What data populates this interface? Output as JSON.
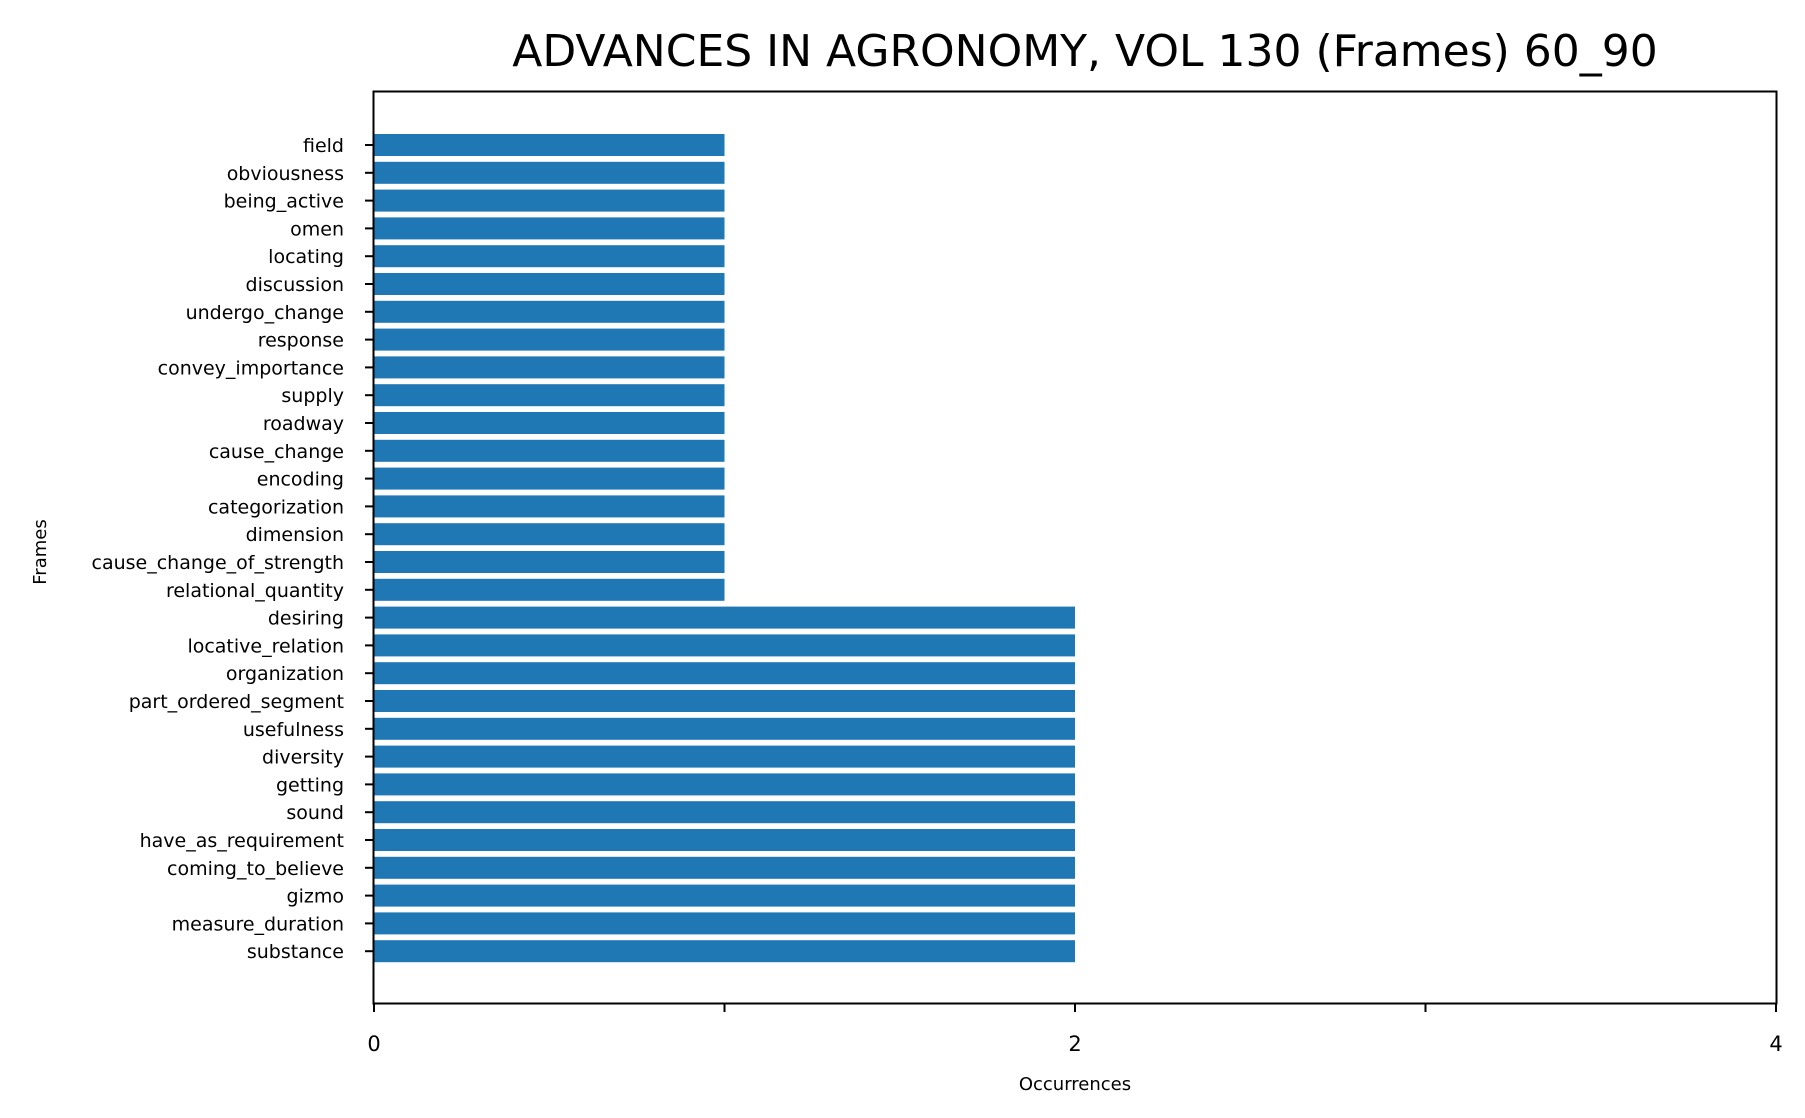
{
  "chart_data": {
    "type": "bar",
    "orientation": "horizontal",
    "title": "ADVANCES IN AGRONOMY, VOL 130 (Frames) 60_90",
    "xlabel": "Occurrences",
    "ylabel": "Frames",
    "xlim": [
      0,
      4
    ],
    "xticks": [
      0,
      1,
      2,
      3,
      4
    ],
    "xtick_labels": [
      "0",
      "",
      "2",
      "",
      "4"
    ],
    "grid": false,
    "bar_color": "#1f77b4",
    "categories": [
      "field",
      "obviousness",
      "being_active",
      "omen",
      "locating",
      "discussion",
      "undergo_change",
      "response",
      "convey_importance",
      "supply",
      "roadway",
      "cause_change",
      "encoding",
      "categorization",
      "dimension",
      "cause_change_of_strength",
      "relational_quantity",
      "desiring",
      "locative_relation",
      "organization",
      "part_ordered_segment",
      "usefulness",
      "diversity",
      "getting",
      "sound",
      "have_as_requirement",
      "coming_to_believe",
      "gizmo",
      "measure_duration",
      "substance"
    ],
    "values": [
      1,
      1,
      1,
      1,
      1,
      1,
      1,
      1,
      1,
      1,
      1,
      1,
      1,
      1,
      1,
      1,
      1,
      2,
      2,
      2,
      2,
      2,
      2,
      2,
      2,
      2,
      2,
      2,
      2,
      2
    ]
  }
}
